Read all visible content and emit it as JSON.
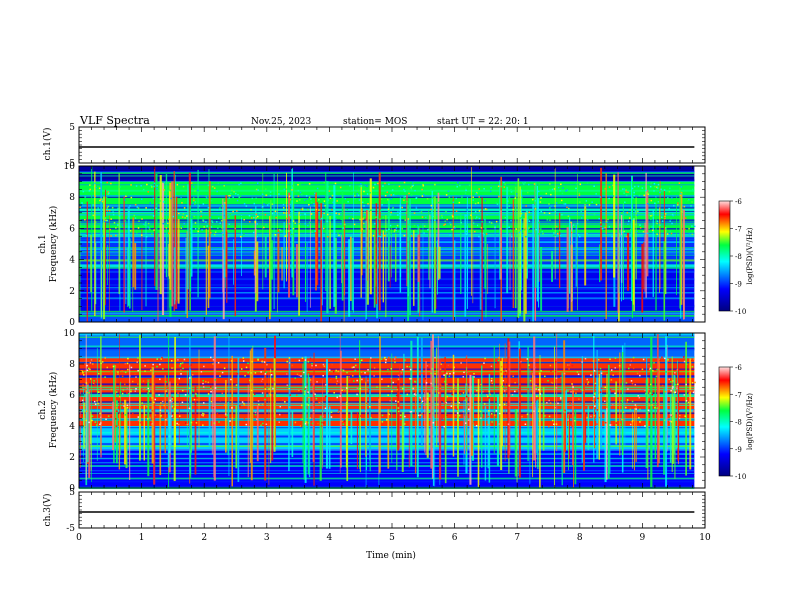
{
  "header": {
    "title": "VLF Spectra",
    "date": "Nov.25, 2023",
    "station": "station= MOS",
    "start": "start  UT =   22: 20: 1"
  },
  "chart_data": [
    {
      "type": "line",
      "panel": "ch1-voltage",
      "ylabel": "ch.1(V)",
      "ylim": [
        -5,
        5
      ],
      "yticks": [
        "5",
        "-5"
      ],
      "x": [
        0,
        9.83
      ],
      "values": [
        0,
        0
      ]
    },
    {
      "type": "heatmap",
      "panel": "ch1-spectrogram",
      "ylabel": "ch.1\nFrequency (kHz)",
      "ylabel_line1": "ch.1",
      "ylabel_line2": "Frequency (kHz)",
      "ylim": [
        0,
        10
      ],
      "yticks": [
        "0",
        "2",
        "4",
        "6",
        "8",
        "10"
      ],
      "xlim": [
        0,
        10
      ],
      "data_xmax": 9.83,
      "colorbar": {
        "label": "log(PSD)(V²/Hz)",
        "ticks": [
          "-6",
          "-7",
          "-8",
          "-9",
          "-10"
        ],
        "range": [
          -10,
          -6
        ]
      },
      "bands": [
        {
          "f0": 0.0,
          "f1": 0.5,
          "level": -8.9
        },
        {
          "f0": 0.5,
          "f1": 4.0,
          "level": -9.3
        },
        {
          "f0": 4.0,
          "f1": 5.5,
          "level": -9.0
        },
        {
          "f0": 5.5,
          "f1": 9.0,
          "level": -7.6
        },
        {
          "f0": 9.0,
          "f1": 10.0,
          "level": -9.8
        }
      ]
    },
    {
      "type": "heatmap",
      "panel": "ch2-spectrogram",
      "ylabel": "ch.2\nFrequency (kHz)",
      "ylabel_line1": "ch.2",
      "ylabel_line2": "Frequency (kHz)",
      "ylim": [
        0,
        10
      ],
      "yticks": [
        "0",
        "2",
        "4",
        "6",
        "8",
        "10"
      ],
      "xlim": [
        0,
        10
      ],
      "data_xmax": 9.83,
      "colorbar": {
        "label": "log(PSD)(V²/Hz)",
        "ticks": [
          "-6",
          "-7",
          "-8",
          "-9",
          "-10"
        ],
        "range": [
          -10,
          -6
        ]
      },
      "bands": [
        {
          "f0": 0.0,
          "f1": 2.5,
          "level": -9.2
        },
        {
          "f0": 2.5,
          "f1": 4.0,
          "level": -8.4
        },
        {
          "f0": 4.0,
          "f1": 8.5,
          "level": -6.6
        },
        {
          "f0": 8.5,
          "f1": 10.0,
          "level": -8.8
        }
      ]
    },
    {
      "type": "line",
      "panel": "ch3-voltage",
      "ylabel": "ch.3(V)",
      "ylim": [
        -5,
        5
      ],
      "yticks": [
        "5",
        "-5"
      ],
      "xlabel": "Time (min)",
      "xticks": [
        "0",
        "1",
        "2",
        "3",
        "4",
        "5",
        "6",
        "7",
        "8",
        "9",
        "10"
      ],
      "x": [
        0,
        9.83
      ],
      "values": [
        0,
        0
      ]
    }
  ],
  "colors": {
    "axis": "#000000",
    "jet": [
      "#00007f",
      "#0000ff",
      "#00ffff",
      "#ffff00",
      "#ff0000",
      "#ffd0d0"
    ]
  }
}
